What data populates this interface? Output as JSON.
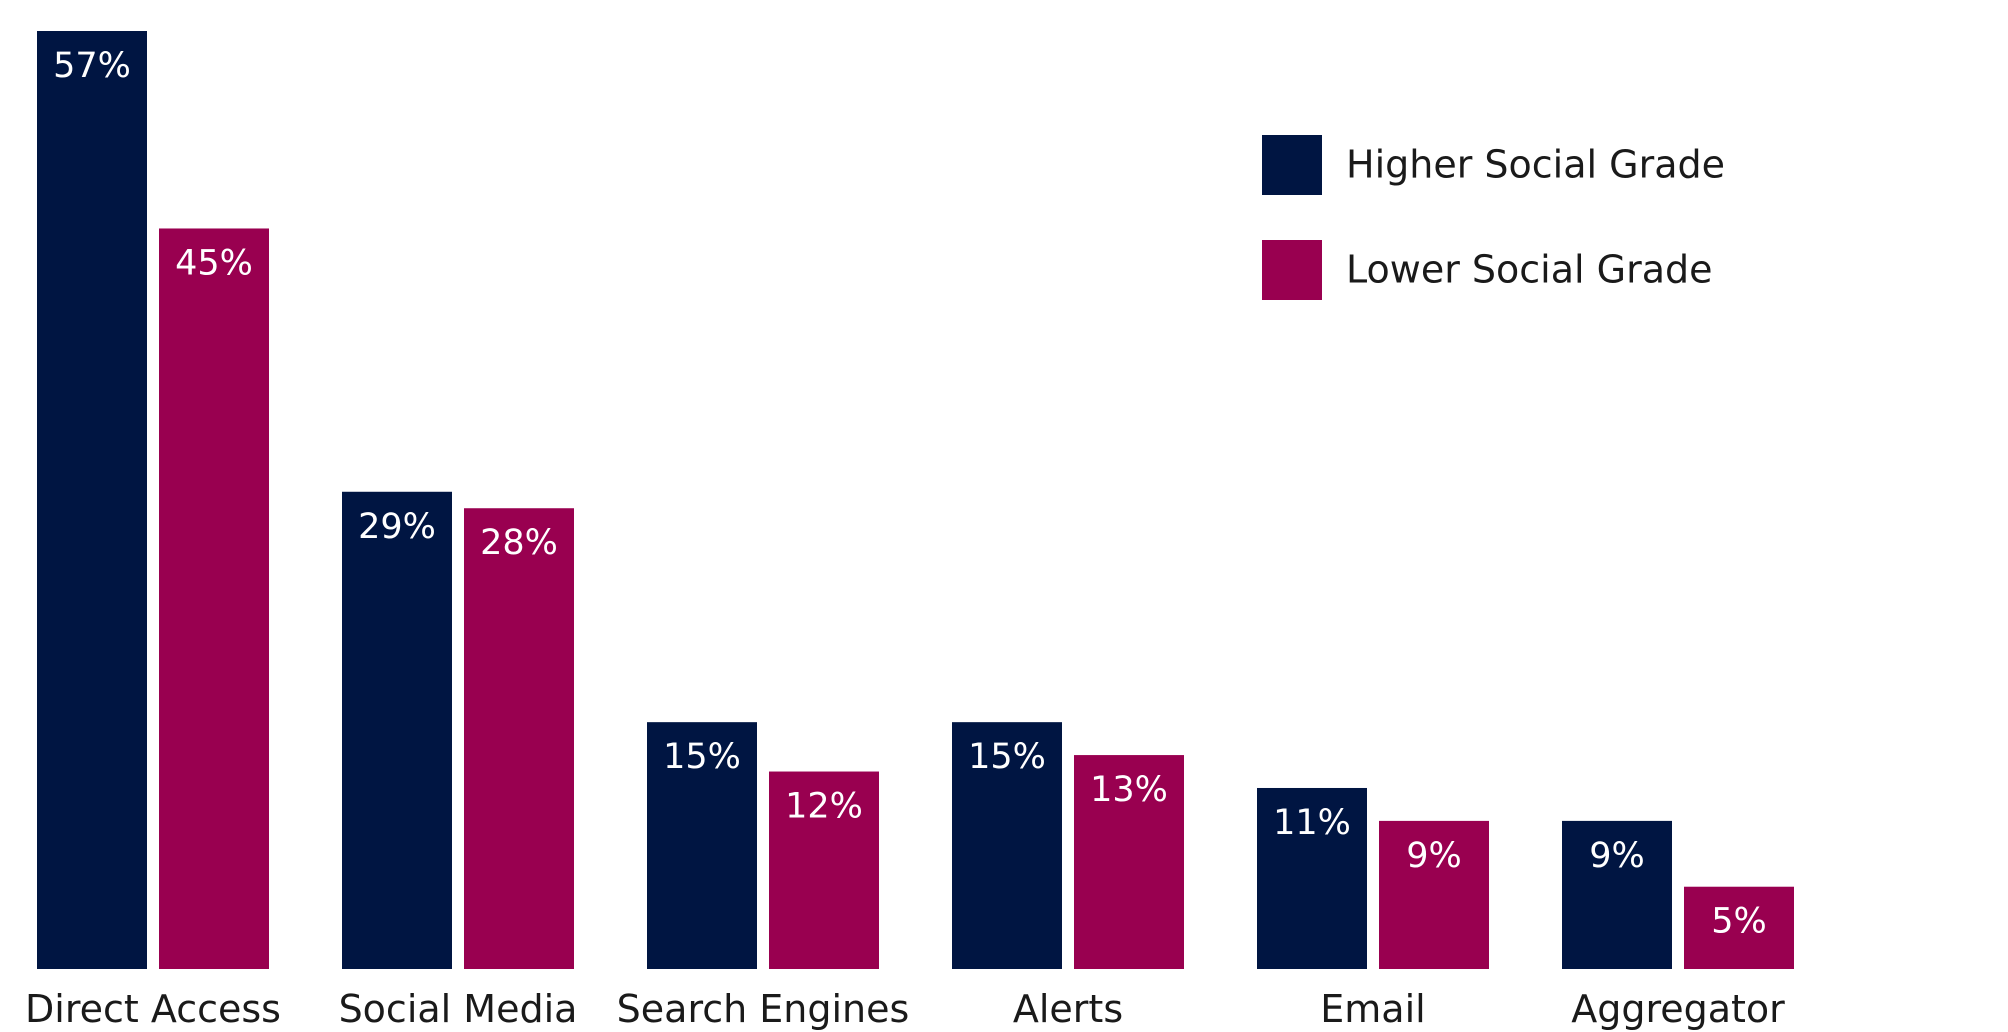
{
  "chart_data": {
    "type": "bar",
    "categories": [
      "Direct Access",
      "Social Media",
      "Search Engines",
      "Alerts",
      "Email",
      "Aggregator"
    ],
    "series": [
      {
        "name": "Higher Social Grade",
        "color": "#001542",
        "values": [
          57,
          29,
          15,
          15,
          11,
          9
        ],
        "labels": [
          "57%",
          "29%",
          "15%",
          "15%",
          "11%",
          "9%"
        ]
      },
      {
        "name": "Lower Social Grade",
        "color": "#990050",
        "values": [
          45,
          28,
          12,
          13,
          9,
          5
        ],
        "labels": [
          "45%",
          "28%",
          "12%",
          "13%",
          "9%",
          "5%"
        ]
      }
    ],
    "ylim": [
      0,
      57
    ],
    "grid": false,
    "legend_position": "top-right"
  }
}
